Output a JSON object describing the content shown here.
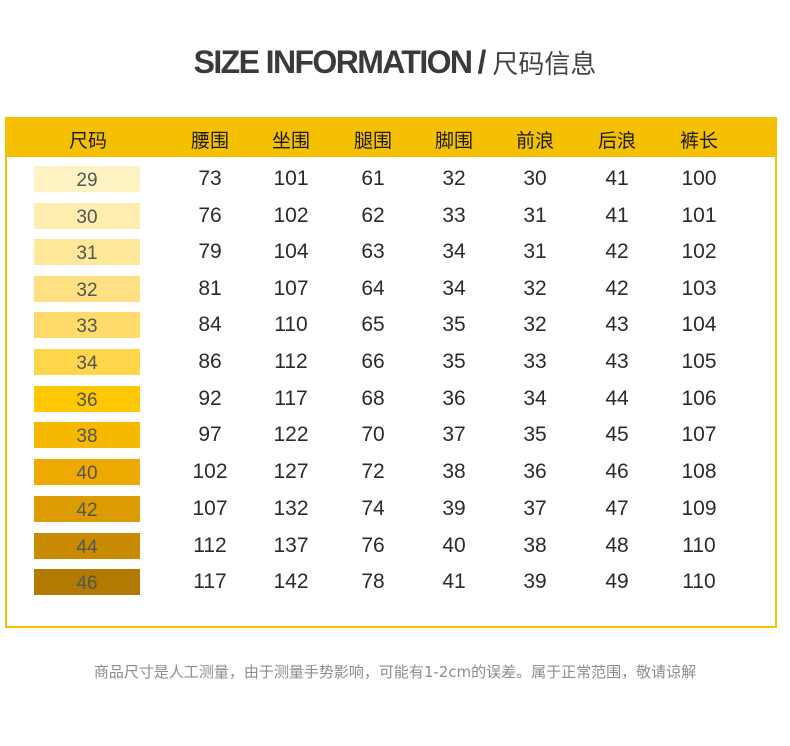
{
  "title": {
    "en": "SIZE INFORMATION",
    "sep": "/",
    "zh": "尺码信息"
  },
  "columns": [
    "尺码",
    "腰围",
    "坐围",
    "腿围",
    "脚围",
    "前浪",
    "后浪",
    "裤长"
  ],
  "swatch_colors": [
    "#fff3c4",
    "#ffeeaf",
    "#ffe79a",
    "#ffe183",
    "#ffdb6b",
    "#ffd54a",
    "#ffc800",
    "#f7b800",
    "#eeaa00",
    "#dc9b00",
    "#c88a00",
    "#b27a00"
  ],
  "rows": [
    [
      "29",
      "73",
      "101",
      "61",
      "32",
      "30",
      "41",
      "100"
    ],
    [
      "30",
      "76",
      "102",
      "62",
      "33",
      "31",
      "41",
      "101"
    ],
    [
      "31",
      "79",
      "104",
      "63",
      "34",
      "31",
      "42",
      "102"
    ],
    [
      "32",
      "81",
      "107",
      "64",
      "34",
      "32",
      "42",
      "103"
    ],
    [
      "33",
      "84",
      "110",
      "65",
      "35",
      "32",
      "43",
      "104"
    ],
    [
      "34",
      "86",
      "112",
      "66",
      "35",
      "33",
      "43",
      "105"
    ],
    [
      "36",
      "92",
      "117",
      "68",
      "36",
      "34",
      "44",
      "106"
    ],
    [
      "38",
      "97",
      "122",
      "70",
      "37",
      "35",
      "45",
      "107"
    ],
    [
      "40",
      "102",
      "127",
      "72",
      "38",
      "36",
      "46",
      "108"
    ],
    [
      "42",
      "107",
      "132",
      "74",
      "39",
      "37",
      "47",
      "109"
    ],
    [
      "44",
      "112",
      "137",
      "76",
      "40",
      "38",
      "48",
      "110"
    ],
    [
      "46",
      "117",
      "142",
      "78",
      "41",
      "39",
      "49",
      "110"
    ]
  ],
  "footnote": "商品尺寸是人工测量，由于测量手势影响，可能有1-2cm的误差。属于正常范围，敬请谅解"
}
